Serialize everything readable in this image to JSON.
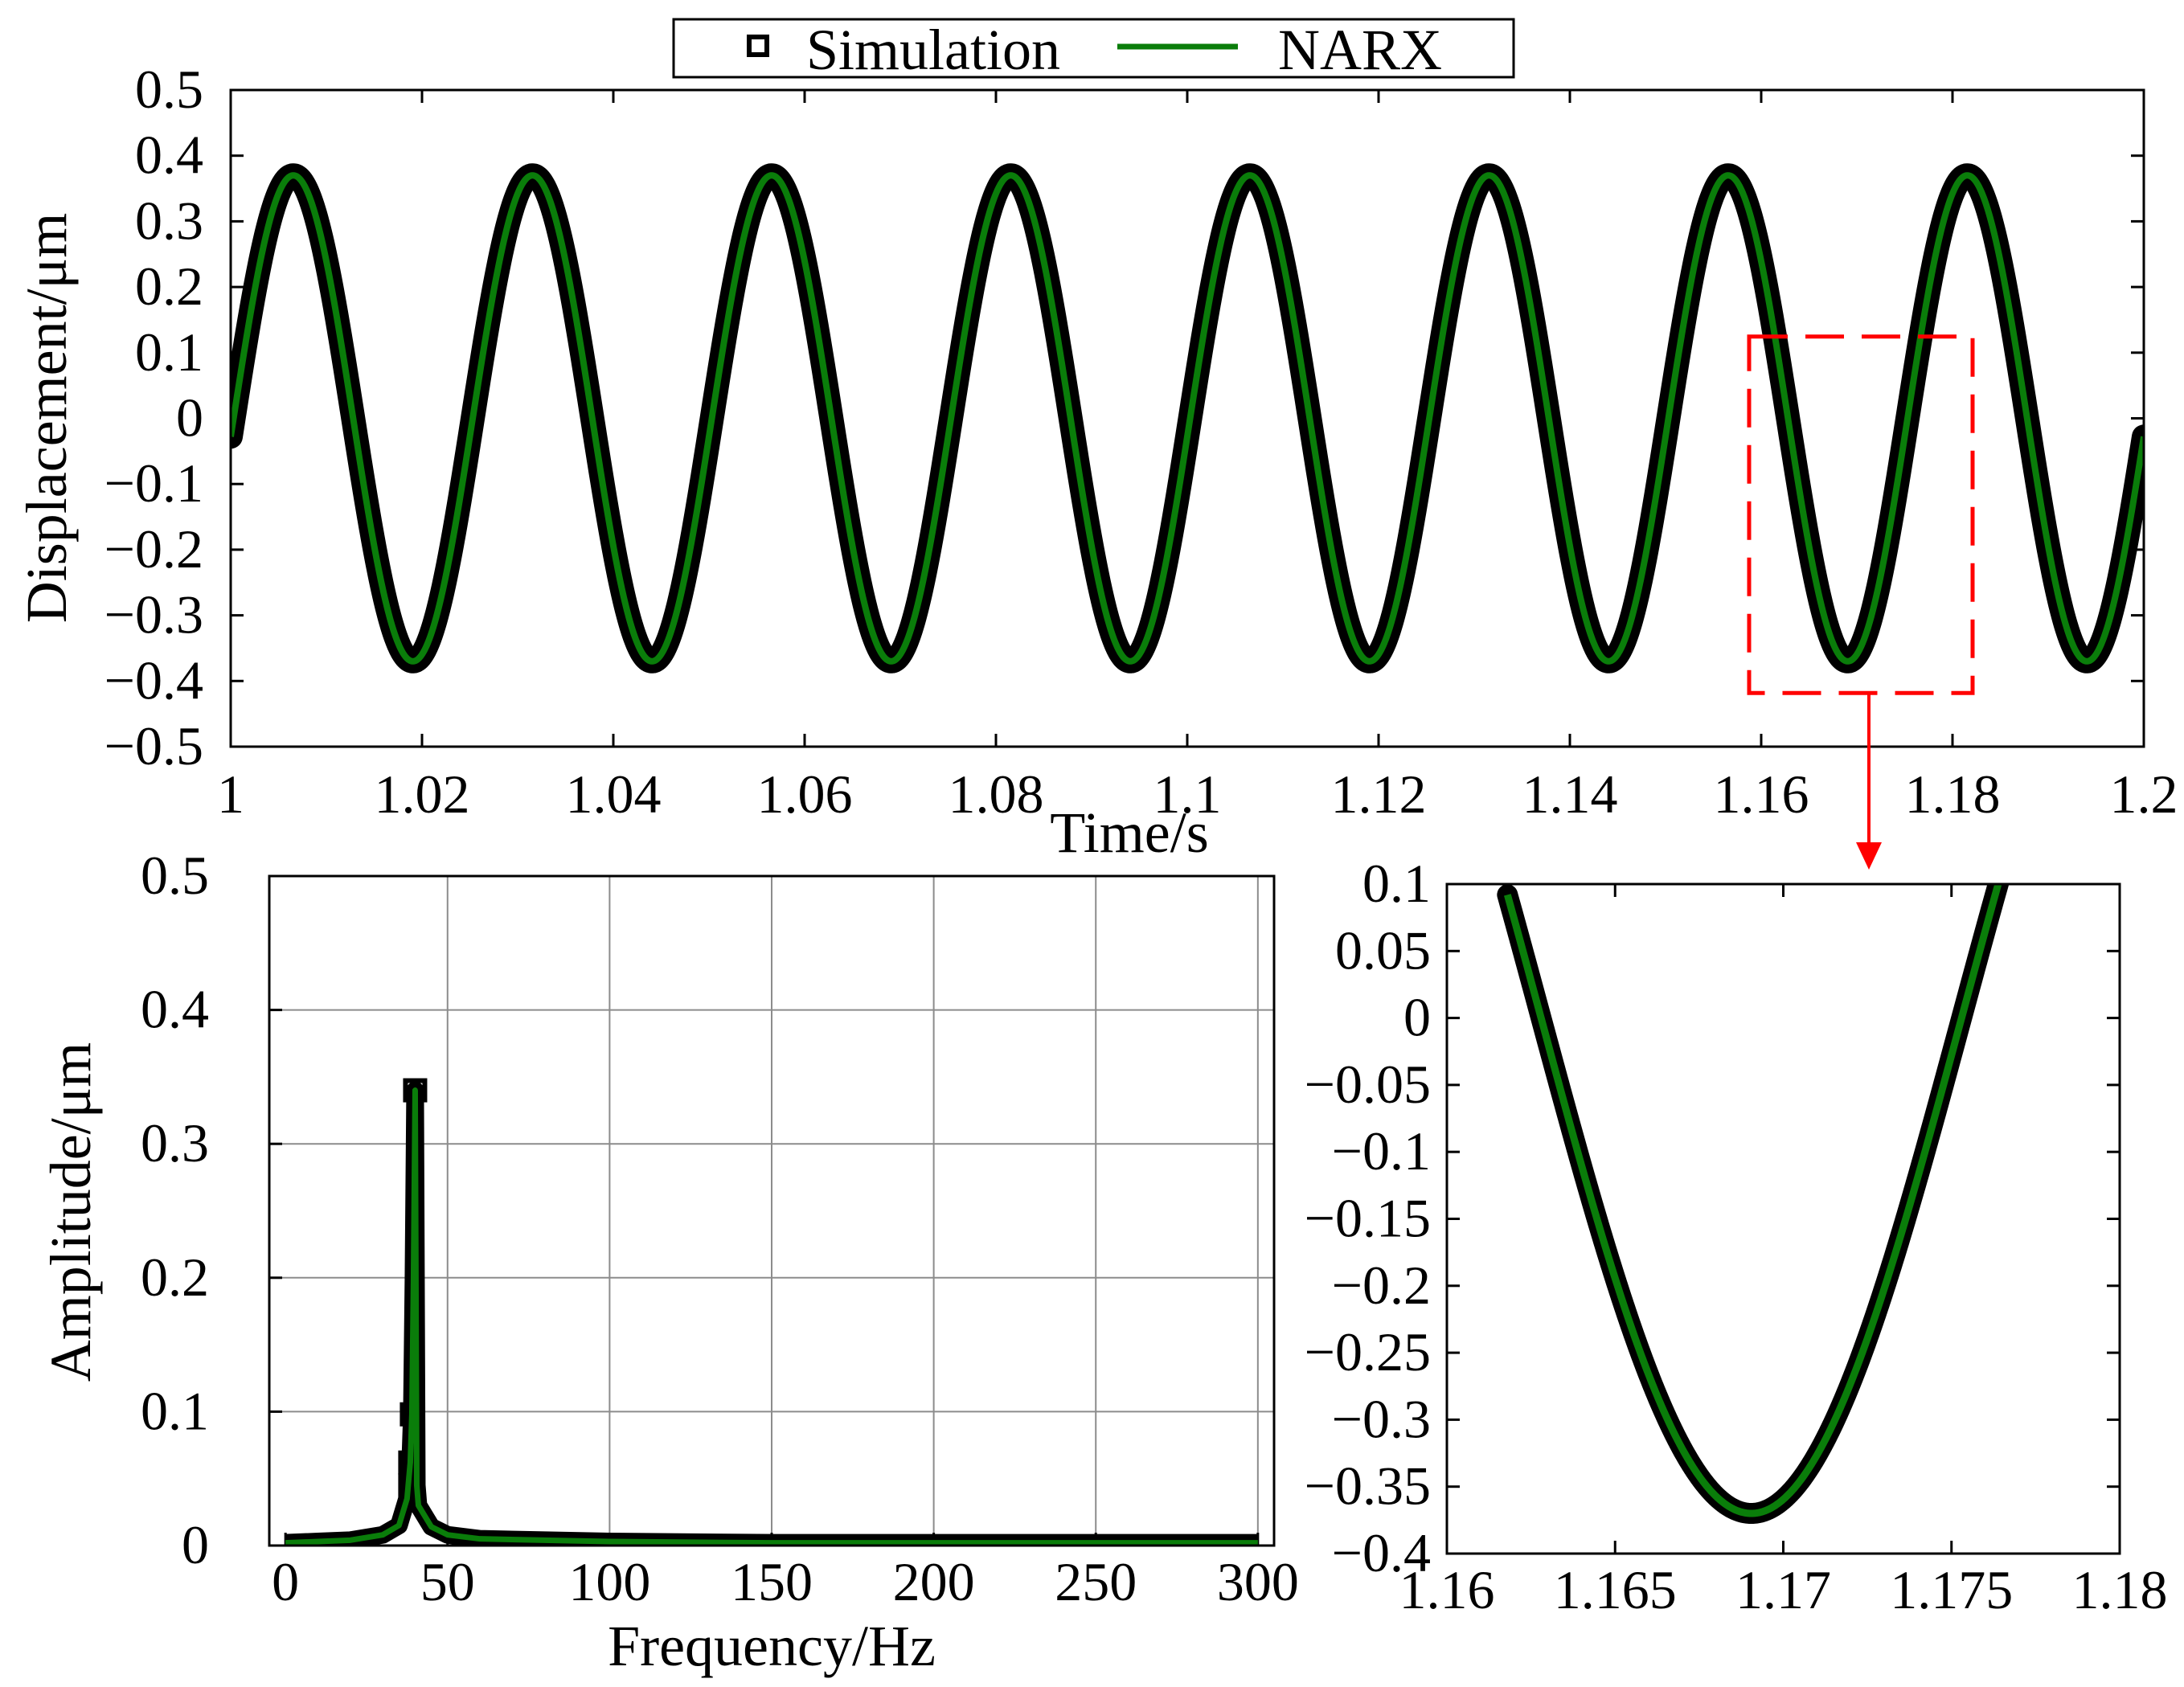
{
  "legend": {
    "simulation_label": "Simulation",
    "narx_label": "NARX"
  },
  "colors": {
    "simulation": "#000000",
    "narx": "#0a7d0a",
    "zoom_box": "#ff0000"
  },
  "chart_data": [
    {
      "id": "time",
      "type": "line",
      "title": "",
      "xlabel": "Time/s",
      "ylabel": "Displacement/μm",
      "xlim": [
        1.0,
        1.2
      ],
      "ylim": [
        -0.5,
        0.5
      ],
      "xticks": [
        1.0,
        1.02,
        1.04,
        1.06,
        1.08,
        1.1,
        1.12,
        1.14,
        1.16,
        1.18,
        1.2
      ],
      "xtick_labels": [
        "1",
        "1.02",
        "1.04",
        "1.06",
        "1.08",
        "1.1",
        "1.12",
        "1.14",
        "1.16",
        "1.18",
        "1.2"
      ],
      "yticks": [
        -0.5,
        -0.4,
        -0.3,
        -0.2,
        -0.1,
        0,
        0.1,
        0.2,
        0.3,
        0.4,
        0.5
      ],
      "ytick_labels": [
        "−0.5",
        "−0.4",
        "−0.3",
        "−0.2",
        "−0.1",
        "0",
        "0.1",
        "0.2",
        "0.3",
        "0.4",
        "0.5"
      ],
      "grid": false,
      "series": [
        {
          "name": "Simulation",
          "marker": "square",
          "function": "0.37*sin(2*pi*40*(t-1.0003))",
          "frequency_hz": 40,
          "amplitude": 0.37,
          "t_range": [
            1.0,
            1.2
          ]
        },
        {
          "name": "NARX",
          "marker": "line",
          "function": "0.37*sin(2*pi*40*(t-1.0003))",
          "frequency_hz": 40,
          "amplitude": 0.37,
          "t_range": [
            1.0,
            1.2
          ]
        }
      ],
      "zoom_region": {
        "x": [
          1.16,
          1.18
        ],
        "y": [
          -0.4,
          0.1
        ]
      }
    },
    {
      "id": "freq",
      "type": "line",
      "title": "",
      "xlabel": "Frequency/Hz",
      "ylabel": "Amplitude/μm",
      "xlim": [
        -5,
        305
      ],
      "ylim": [
        0,
        0.5
      ],
      "xticks": [
        0,
        50,
        100,
        150,
        200,
        250,
        300
      ],
      "xtick_labels": [
        "0",
        "50",
        "100",
        "150",
        "200",
        "250",
        "300"
      ],
      "yticks": [
        0,
        0.1,
        0.2,
        0.3,
        0.4,
        0.5
      ],
      "ytick_labels": [
        "0",
        "0.1",
        "0.2",
        "0.3",
        "0.4",
        "0.5"
      ],
      "grid": true,
      "series": [
        {
          "name": "Simulation",
          "marker": "square",
          "x": [
            0,
            10,
            20,
            30,
            35,
            37.5,
            38.5,
            39,
            39.5,
            40,
            40.5,
            41,
            45,
            50,
            60,
            80,
            100,
            150,
            200,
            250,
            300
          ],
          "y": [
            0.002,
            0.003,
            0.004,
            0.008,
            0.015,
            0.035,
            0.062,
            0.098,
            0.2,
            0.34,
            0.045,
            0.03,
            0.014,
            0.008,
            0.005,
            0.004,
            0.003,
            0.002,
            0.002,
            0.002,
            0.002
          ]
        },
        {
          "name": "NARX",
          "marker": "line",
          "x": [
            0,
            10,
            20,
            30,
            35,
            37.5,
            38.5,
            39,
            39.5,
            40,
            40.5,
            41,
            45,
            50,
            60,
            80,
            100,
            150,
            200,
            250,
            300
          ],
          "y": [
            0.002,
            0.003,
            0.004,
            0.008,
            0.015,
            0.035,
            0.062,
            0.098,
            0.2,
            0.34,
            0.045,
            0.03,
            0.014,
            0.008,
            0.005,
            0.004,
            0.003,
            0.002,
            0.002,
            0.002,
            0.002
          ]
        }
      ]
    },
    {
      "id": "zoom",
      "type": "line",
      "title": "",
      "xlabel": "",
      "ylabel": "",
      "xlim": [
        1.16,
        1.18
      ],
      "ylim": [
        -0.4,
        0.1
      ],
      "xticks": [
        1.16,
        1.165,
        1.17,
        1.175,
        1.18
      ],
      "xtick_labels": [
        "1.16",
        "1.165",
        "1.17",
        "1.175",
        "1.18"
      ],
      "yticks": [
        -0.4,
        -0.35,
        -0.3,
        -0.25,
        -0.2,
        -0.15,
        -0.1,
        -0.05,
        0,
        0.05,
        0.1
      ],
      "ytick_labels": [
        "−0.4",
        "−0.35",
        "−0.3",
        "−0.25",
        "−0.2",
        "−0.15",
        "−0.1",
        "−0.05",
        "0",
        "0.05",
        "0.1"
      ],
      "grid": false,
      "series": [
        {
          "name": "Simulation",
          "marker": "square",
          "function": "0.37*sin(2*pi*40*(t-1.0003))",
          "t_range": [
            1.1618,
            1.1768
          ]
        },
        {
          "name": "NARX",
          "marker": "line",
          "function": "0.37*sin(2*pi*40*(t-1.0003))",
          "t_range": [
            1.1618,
            1.1768
          ]
        }
      ]
    }
  ]
}
